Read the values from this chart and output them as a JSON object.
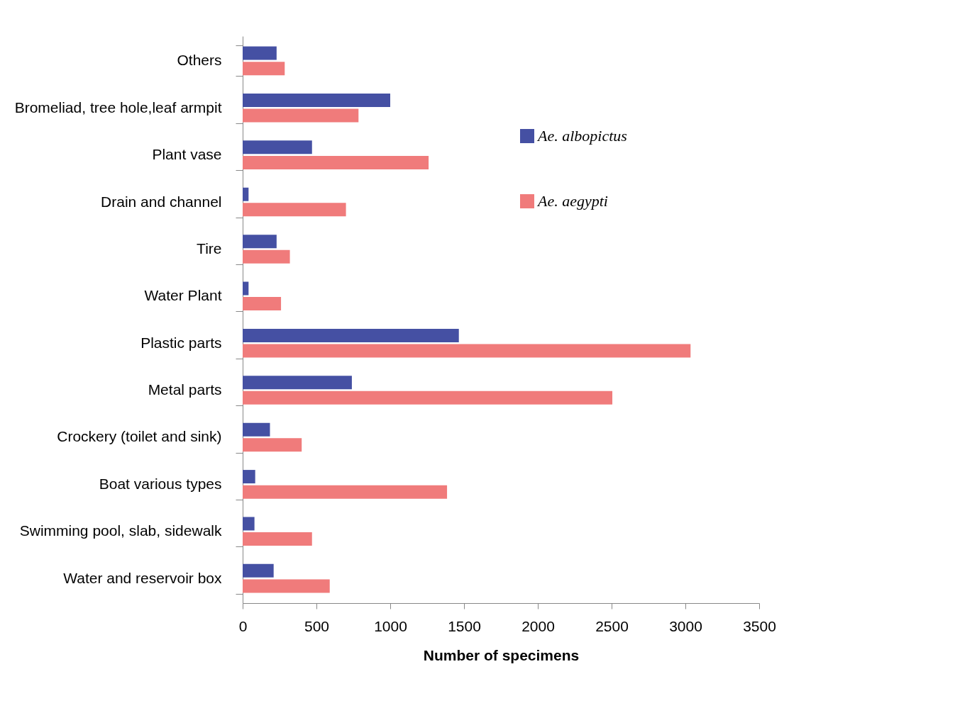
{
  "chart_data": {
    "type": "bar",
    "orientation": "horizontal",
    "xlabel": "Number of specimens",
    "categories": [
      "Others",
      "Bromeliad, tree hole,leaf armpit",
      "Plant vase",
      "Drain and channel",
      "Tire",
      "Water Plant",
      "Plastic parts",
      "Metal parts",
      "Crockery (toilet and sink)",
      "Boat various types",
      "Swimming pool, slab, sidewalk",
      "Water and reservoir box"
    ],
    "series": [
      {
        "name": "Ae. albopictus",
        "color": "#4550a3",
        "values": [
          230,
          1000,
          470,
          40,
          230,
          40,
          1465,
          740,
          185,
          85,
          80,
          210
        ]
      },
      {
        "name": "Ae. aegypti",
        "color": "#f07b7b",
        "values": [
          285,
          785,
          1260,
          700,
          320,
          260,
          3035,
          2505,
          400,
          1385,
          470,
          590
        ]
      }
    ],
    "xlim": [
      0,
      3500
    ],
    "xticks": [
      0,
      500,
      1000,
      1500,
      2000,
      2500,
      3000,
      3500
    ],
    "grid": false,
    "legend": "top right"
  }
}
